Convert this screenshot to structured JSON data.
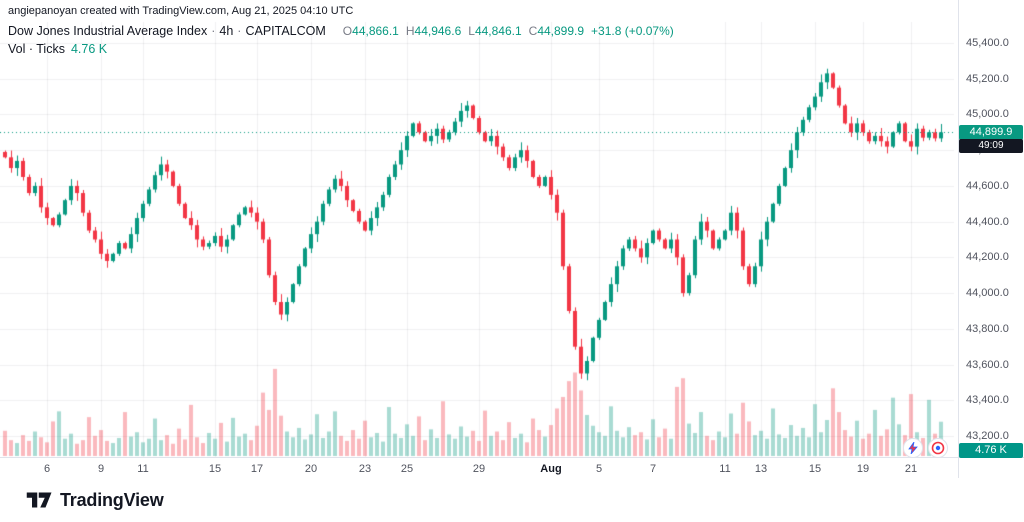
{
  "attribution": "angiepanoyan created with TradingView.com, Aug 21, 2025 04:10 UTC",
  "legend": {
    "symbol": "Dow Jones Industrial Average Index",
    "separator": "·",
    "interval": "4h",
    "exchange": "CAPITALCOM",
    "o_label": "O",
    "o_value": "44,866.1",
    "h_label": "H",
    "h_value": "44,946.6",
    "l_label": "L",
    "l_value": "44,846.1",
    "c_label": "C",
    "c_value": "44,899.9",
    "change": "+31.8 (+0.07%)",
    "vol_label": "Vol · Ticks",
    "vol_value": "4.76 K"
  },
  "badges": {
    "last_price": "44,899.9",
    "countdown": "49:09",
    "volume": "4.76 K"
  },
  "footer": {
    "brand": "TradingView"
  },
  "chart_data": {
    "type": "candlestick",
    "title": "Dow Jones Industrial Average Index · 4h · CAPITALCOM",
    "last_candle": {
      "o": 44866.1,
      "h": 44946.6,
      "l": 44846.1,
      "c": 44899.9
    },
    "change": 31.8,
    "change_pct": 0.07,
    "last_price": 44899.9,
    "last_volume_k": 4.76,
    "y_range": {
      "min": 43200,
      "max": 45400,
      "tick_step": 200
    },
    "x_labels": [
      {
        "t": "6",
        "i": 7
      },
      {
        "t": "9",
        "i": 16
      },
      {
        "t": "11",
        "i": 23
      },
      {
        "t": "15",
        "i": 35
      },
      {
        "t": "17",
        "i": 42
      },
      {
        "t": "20",
        "i": 51
      },
      {
        "t": "23",
        "i": 60
      },
      {
        "t": "25",
        "i": 67
      },
      {
        "t": "29",
        "i": 79
      },
      {
        "t": "Aug",
        "i": 91,
        "major": true
      },
      {
        "t": "5",
        "i": 99
      },
      {
        "t": "7",
        "i": 108
      },
      {
        "t": "11",
        "i": 120
      },
      {
        "t": "13",
        "i": 126
      },
      {
        "t": "15",
        "i": 135
      },
      {
        "t": "19",
        "i": 143
      },
      {
        "t": "21",
        "i": 151
      }
    ],
    "closes": [
      44760,
      44700,
      44740,
      44650,
      44560,
      44600,
      44480,
      44420,
      44380,
      44440,
      44520,
      44600,
      44560,
      44450,
      44350,
      44300,
      44220,
      44180,
      44220,
      44280,
      44250,
      44330,
      44420,
      44500,
      44580,
      44660,
      44720,
      44680,
      44600,
      44500,
      44420,
      44380,
      44300,
      44260,
      44280,
      44320,
      44260,
      44300,
      44380,
      44440,
      44480,
      44450,
      44400,
      44300,
      44100,
      43950,
      43880,
      43950,
      44050,
      44150,
      44250,
      44330,
      44400,
      44500,
      44580,
      44640,
      44600,
      44520,
      44460,
      44400,
      44350,
      44420,
      44480,
      44550,
      44650,
      44720,
      44800,
      44880,
      44950,
      44900,
      44850,
      44880,
      44920,
      44860,
      44900,
      44960,
      45020,
      45050,
      44980,
      44900,
      44850,
      44880,
      44820,
      44760,
      44700,
      44760,
      44800,
      44740,
      44650,
      44600,
      44650,
      44550,
      44450,
      44150,
      43900,
      43700,
      43550,
      43620,
      43750,
      43850,
      43950,
      44050,
      44150,
      44250,
      44300,
      44250,
      44200,
      44280,
      44350,
      44300,
      44250,
      44300,
      44200,
      44000,
      44100,
      44300,
      44400,
      44350,
      44250,
      44300,
      44350,
      44450,
      44350,
      44150,
      44050,
      44150,
      44300,
      44400,
      44500,
      44600,
      44700,
      44800,
      44900,
      44970,
      45040,
      45100,
      45180,
      45230,
      45150,
      45050,
      44950,
      44900,
      44950,
      44900,
      44850,
      44880,
      44850,
      44820,
      44900,
      44950,
      44850,
      44820,
      44920,
      44870,
      44900,
      44866.1,
      44899.9
    ],
    "volumes_k": [
      3.5,
      2.2,
      1.8,
      2.9,
      2.1,
      3.4,
      2.6,
      1.9,
      4.8,
      6.2,
      2.4,
      3.1,
      1.7,
      2.2,
      5.4,
      2.8,
      3.6,
      2.1,
      1.8,
      2.5,
      6.1,
      2.7,
      3.3,
      1.9,
      2.4,
      5.2,
      2.2,
      2.9,
      1.7,
      3.8,
      2.3,
      7.1,
      2.6,
      1.8,
      3.2,
      2.4,
      4.6,
      2.0,
      5.3,
      2.7,
      3.1,
      2.2,
      4.2,
      8.8,
      6.4,
      12.1,
      5.6,
      3.4,
      2.6,
      3.9,
      2.3,
      3.0,
      5.8,
      2.5,
      3.4,
      6.2,
      2.8,
      2.1,
      3.6,
      2.4,
      4.9,
      2.6,
      3.2,
      2.0,
      6.8,
      3.1,
      2.5,
      4.4,
      2.8,
      5.5,
      2.2,
      3.7,
      2.5,
      7.6,
      3.0,
      2.4,
      4.1,
      2.7,
      3.5,
      2.1,
      6.3,
      2.8,
      3.4,
      2.2,
      4.7,
      2.5,
      3.1,
      1.9,
      5.2,
      3.6,
      2.7,
      4.3,
      6.6,
      8.2,
      10.4,
      11.6,
      9.1,
      5.7,
      4.2,
      3.3,
      2.8,
      6.9,
      3.5,
      2.6,
      4.0,
      2.9,
      3.3,
      2.3,
      5.1,
      2.6,
      3.8,
      2.4,
      9.6,
      10.8,
      4.5,
      3.2,
      6.1,
      2.8,
      2.2,
      3.4,
      2.6,
      5.9,
      3.1,
      7.4,
      4.8,
      2.9,
      3.5,
      2.4,
      6.6,
      3.0,
      2.5,
      4.3,
      2.8,
      3.9,
      2.6,
      7.2,
      3.3,
      5.0,
      9.4,
      6.1,
      3.6,
      2.7,
      4.9,
      2.4,
      3.1,
      6.4,
      2.8,
      3.7,
      8.1,
      4.4,
      2.9,
      8.6,
      3.3,
      2.5,
      7.8,
      3.1,
      4.76
    ],
    "wick_pattern": [
      8,
      26,
      14,
      38,
      6,
      20,
      30,
      12,
      44,
      17
    ],
    "colors": {
      "up": "#089981",
      "down": "#f23645",
      "vol_up": "rgba(8,153,129,0.35)",
      "vol_down": "rgba(242,54,69,0.35)",
      "grid": "rgba(42,46,57,0.07)",
      "axis_text": "#50535e",
      "price_badge_bg": "#089981",
      "countdown_badge_bg": "#131722",
      "volume_badge_bg": "#009688"
    }
  }
}
